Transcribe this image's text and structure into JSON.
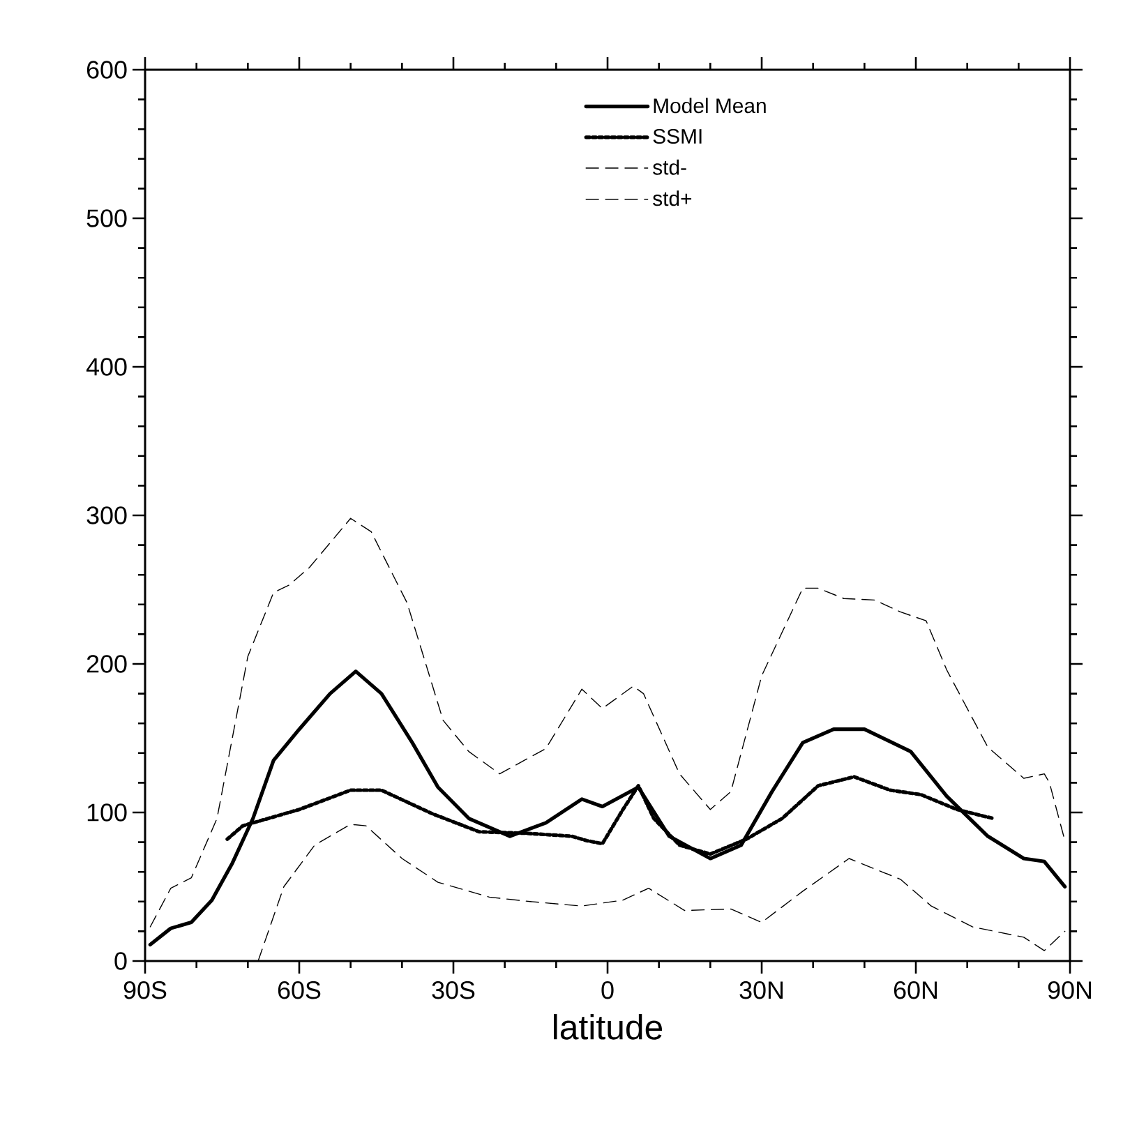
{
  "chart_data": {
    "type": "line",
    "xlabel": "latitude",
    "xlim": [
      -90,
      90
    ],
    "ylim": [
      0,
      600
    ],
    "xticks": [
      {
        "value": -90,
        "label": "90S"
      },
      {
        "value": -60,
        "label": "60S"
      },
      {
        "value": -30,
        "label": "30S"
      },
      {
        "value": 0,
        "label": "0"
      },
      {
        "value": 30,
        "label": "30N"
      },
      {
        "value": 60,
        "label": "60N"
      },
      {
        "value": 90,
        "label": "90N"
      }
    ],
    "yticks": [
      0,
      100,
      200,
      300,
      400,
      500,
      600
    ],
    "grid": false,
    "legend": "top right",
    "series": [
      {
        "name": "Model Mean",
        "color": "#000000",
        "line_style": "solid",
        "x": [
          -89,
          -85,
          -81,
          -77,
          -73,
          -69,
          -65,
          -60,
          -54,
          -49,
          -44,
          -38,
          -33,
          -27,
          -19,
          -12,
          -5,
          -1,
          6,
          12,
          20,
          26,
          32,
          38,
          44,
          50,
          59,
          66,
          74,
          81,
          85,
          89
        ],
        "values": [
          11,
          22,
          26,
          41,
          66,
          96,
          135,
          156,
          180,
          195,
          180,
          147,
          117,
          96,
          84,
          93,
          109,
          104,
          117,
          84,
          69,
          78,
          114,
          147,
          156,
          156,
          141,
          111,
          84,
          69,
          67,
          50
        ]
      },
      {
        "name": "SSMI",
        "color": "#000000",
        "line_style": "dotted",
        "x": [
          -74,
          -71,
          -60,
          -50,
          -44,
          -34,
          -25,
          -16,
          -7,
          -4,
          -1,
          3,
          6,
          9,
          14,
          20,
          27,
          34,
          41,
          48,
          55,
          61,
          68,
          75
        ],
        "values": [
          82,
          91,
          102,
          115,
          115,
          99,
          87,
          86,
          84,
          81,
          79,
          102,
          118,
          96,
          78,
          72,
          82,
          96,
          118,
          124,
          115,
          112,
          102,
          96
        ]
      },
      {
        "name": "std-",
        "color": "#000000",
        "line_style": "dashed",
        "x": [
          -68,
          -63,
          -57,
          -50,
          -47,
          -40,
          -33,
          -23,
          -15,
          -5,
          3,
          8,
          15,
          24,
          30,
          38,
          47,
          57,
          63,
          71,
          81,
          85,
          89
        ],
        "values": [
          0,
          50,
          78,
          92,
          91,
          69,
          53,
          43,
          40,
          37,
          41,
          49,
          34,
          35,
          26,
          47,
          69,
          55,
          37,
          23,
          16,
          7,
          20
        ]
      },
      {
        "name": "std+",
        "color": "#000000",
        "line_style": "dashed",
        "x": [
          -89,
          -85,
          -81,
          -76,
          -70,
          -65,
          -62,
          -58,
          -50,
          -46,
          -39,
          -32,
          -27,
          -21,
          -12,
          -5,
          -1,
          5,
          7,
          14,
          20,
          24,
          30,
          38,
          41,
          46,
          52,
          57,
          62,
          66,
          74,
          81,
          85,
          86,
          89
        ],
        "values": [
          23,
          49,
          56,
          96,
          205,
          248,
          253,
          265,
          298,
          289,
          241,
          162,
          141,
          126,
          143,
          183,
          170,
          185,
          180,
          126,
          102,
          114,
          192,
          251,
          251,
          244,
          243,
          235,
          229,
          196,
          144,
          123,
          126,
          120,
          81
        ]
      }
    ]
  }
}
